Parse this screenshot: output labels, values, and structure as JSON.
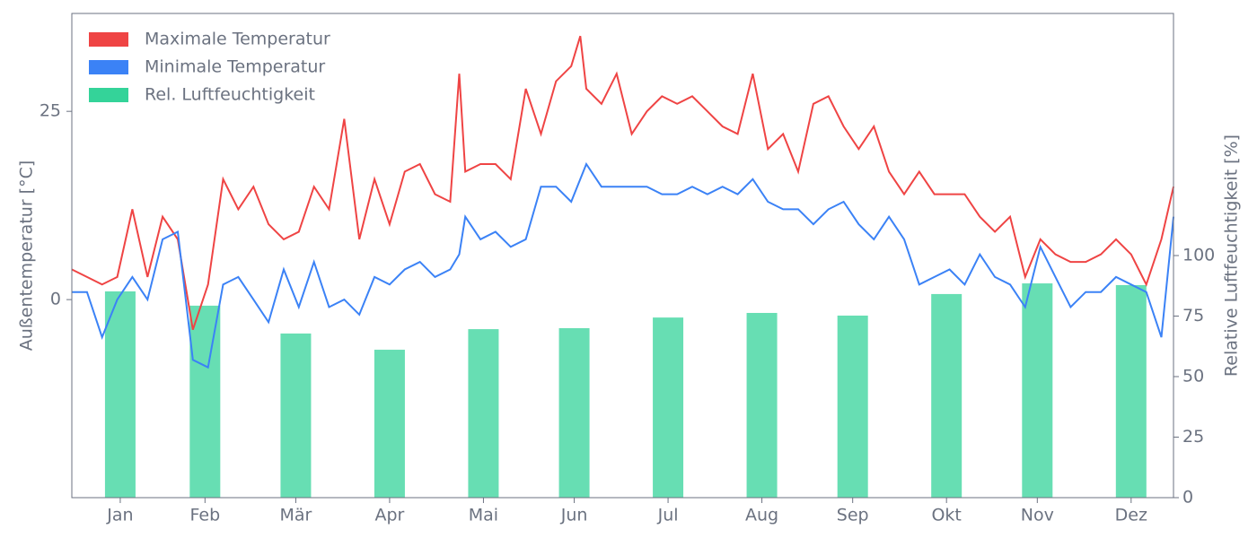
{
  "chart_data": {
    "type": "line",
    "xlim": [
      0,
      364
    ],
    "xticks": [
      {
        "value": 16,
        "label": "Jan"
      },
      {
        "value": 44,
        "label": "Feb"
      },
      {
        "value": 74,
        "label": "Mär"
      },
      {
        "value": 105,
        "label": "Apr"
      },
      {
        "value": 136,
        "label": "Mai"
      },
      {
        "value": 166,
        "label": "Jun"
      },
      {
        "value": 197,
        "label": "Jul"
      },
      {
        "value": 228,
        "label": "Aug"
      },
      {
        "value": 258,
        "label": "Sep"
      },
      {
        "value": 289,
        "label": "Okt"
      },
      {
        "value": 319,
        "label": "Nov"
      },
      {
        "value": 350,
        "label": "Dez"
      }
    ],
    "ylabel": "Außentemperatur [°C]",
    "ylim": [
      -26.3,
      38
    ],
    "yticks": [
      0,
      25
    ],
    "y2label": "Relative Luftfeuchtigkeit [%]",
    "y2lim": [
      0,
      200
    ],
    "y2ticks": [
      0,
      25,
      50,
      75,
      100
    ],
    "legend": "upper left",
    "x": [
      0,
      5,
      10,
      15,
      20,
      25,
      30,
      35,
      40,
      45,
      50,
      55,
      60,
      65,
      70,
      75,
      80,
      85,
      90,
      95,
      100,
      105,
      110,
      115,
      120,
      125,
      128,
      130,
      135,
      140,
      145,
      150,
      155,
      160,
      165,
      168,
      170,
      175,
      180,
      185,
      190,
      195,
      200,
      205,
      210,
      215,
      220,
      225,
      230,
      235,
      240,
      245,
      250,
      255,
      260,
      265,
      270,
      275,
      280,
      285,
      290,
      295,
      300,
      305,
      310,
      315,
      320,
      325,
      330,
      335,
      340,
      345,
      350,
      355,
      360,
      364
    ],
    "series": [
      {
        "name": "Maximale Temperatur",
        "type": "line",
        "color": "#ef4444",
        "values": [
          4,
          3,
          2,
          3,
          12,
          3,
          11,
          8,
          -4,
          2,
          16,
          12,
          15,
          10,
          8,
          9,
          15,
          12,
          24,
          8,
          16,
          10,
          17,
          18,
          14,
          13,
          30,
          17,
          18,
          18,
          16,
          28,
          22,
          29,
          31,
          35,
          28,
          26,
          30,
          22,
          25,
          27,
          26,
          27,
          25,
          23,
          22,
          30,
          20,
          22,
          17,
          26,
          27,
          23,
          20,
          23,
          17,
          14,
          17,
          14,
          14,
          14,
          11,
          9,
          11,
          3,
          8,
          6,
          5,
          5,
          6,
          8,
          6,
          2,
          8,
          15
        ]
      },
      {
        "name": "Minimale Temperatur",
        "type": "line",
        "color": "#3b82f6",
        "values": [
          1,
          1,
          -5,
          0,
          3,
          0,
          8,
          9,
          -8,
          -9,
          2,
          3,
          0,
          -3,
          4,
          -1,
          5,
          -1,
          0,
          -2,
          3,
          2,
          4,
          5,
          3,
          4,
          6,
          11,
          8,
          9,
          7,
          8,
          15,
          15,
          13,
          16,
          18,
          15,
          15,
          15,
          15,
          14,
          14,
          15,
          14,
          15,
          14,
          16,
          13,
          12,
          12,
          10,
          12,
          13,
          10,
          8,
          11,
          8,
          2,
          3,
          4,
          2,
          6,
          3,
          2,
          -1,
          7,
          3,
          -1,
          1,
          1,
          3,
          2,
          1,
          -5,
          11
        ]
      },
      {
        "name": "Rel. Luftfeuchtigkeit",
        "type": "bar",
        "axis": "y2",
        "color": "#34d399",
        "x": [
          16,
          44,
          74,
          105,
          136,
          166,
          197,
          228,
          258,
          289,
          319,
          350
        ],
        "values": [
          85.2,
          79.3,
          67.8,
          61.1,
          69.6,
          70,
          74.4,
          76.3,
          75.2,
          84.1,
          88.5,
          87.8
        ]
      }
    ]
  }
}
